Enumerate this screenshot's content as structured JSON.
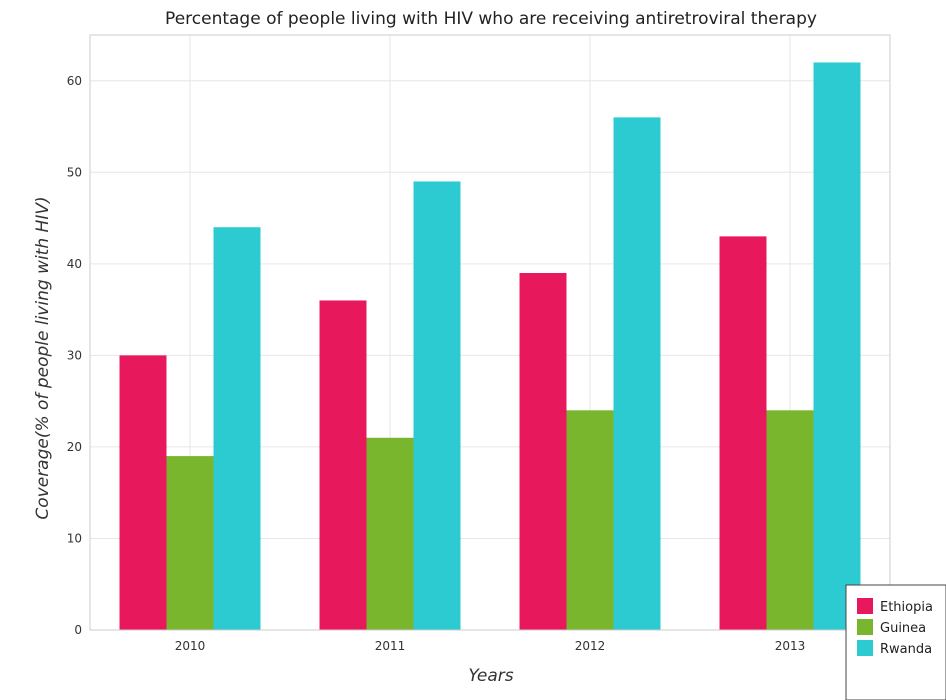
{
  "chart_data": {
    "type": "bar",
    "title": "Percentage of people living with HIV who are receiving antiretroviral therapy",
    "xlabel": "Years",
    "ylabel": "Coverage(% of people living with HIV)",
    "categories": [
      "2010",
      "2011",
      "2012",
      "2013"
    ],
    "series": [
      {
        "name": "Ethiopia",
        "color": "#e8185d",
        "values": [
          30,
          36,
          39,
          43
        ]
      },
      {
        "name": "Guinea",
        "color": "#7ab62d",
        "values": [
          19,
          21,
          24,
          24
        ]
      },
      {
        "name": "Rwanda",
        "color": "#2ccbd2",
        "values": [
          44,
          49,
          56,
          62
        ]
      }
    ],
    "ylim": [
      0,
      65
    ],
    "yticks": [
      0,
      10,
      20,
      30,
      40,
      50,
      60
    ],
    "grid": true,
    "legend_position": "bottom-right"
  }
}
